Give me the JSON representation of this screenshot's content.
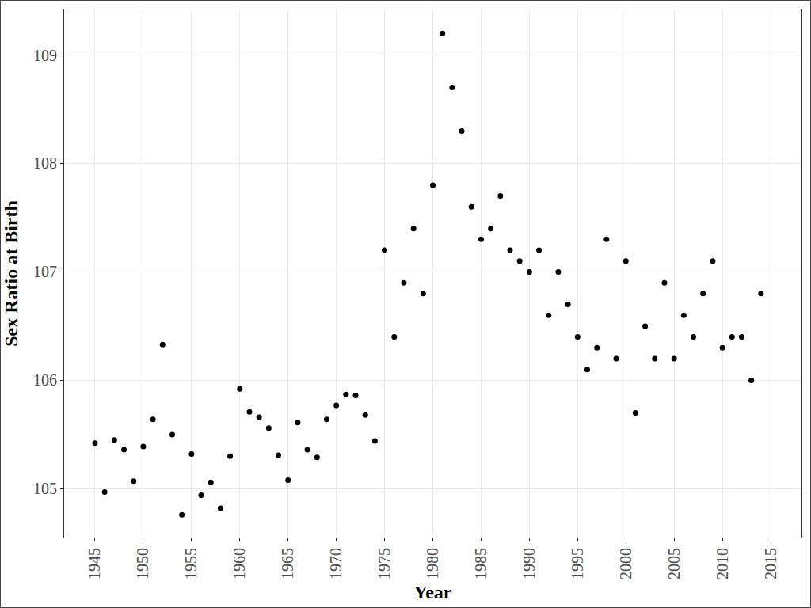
{
  "chart_data": {
    "type": "scatter",
    "x_label": "Year",
    "y_label": "Sex Ratio at Birth",
    "x": [
      1945,
      1946,
      1947,
      1948,
      1949,
      1950,
      1951,
      1952,
      1953,
      1954,
      1955,
      1956,
      1957,
      1958,
      1959,
      1960,
      1961,
      1962,
      1963,
      1964,
      1965,
      1966,
      1967,
      1968,
      1969,
      1970,
      1971,
      1972,
      1973,
      1974,
      1975,
      1976,
      1977,
      1978,
      1979,
      1980,
      1981,
      1982,
      1983,
      1984,
      1985,
      1986,
      1987,
      1988,
      1989,
      1990,
      1991,
      1992,
      1993,
      1994,
      1995,
      1996,
      1997,
      1998,
      1999,
      2000,
      2001,
      2002,
      2003,
      2004,
      2005,
      2006,
      2007,
      2008,
      2009,
      2010,
      2011,
      2012,
      2013,
      2014
    ],
    "values": [
      105.42,
      104.97,
      105.45,
      105.36,
      105.07,
      105.39,
      105.64,
      106.33,
      105.5,
      104.76,
      105.32,
      104.94,
      105.06,
      104.82,
      105.3,
      105.92,
      105.71,
      105.66,
      105.56,
      105.31,
      105.08,
      105.61,
      105.36,
      105.29,
      105.64,
      105.77,
      105.87,
      105.86,
      105.68,
      105.44,
      107.2,
      106.4,
      106.9,
      107.4,
      106.8,
      107.8,
      109.2,
      108.7,
      108.3,
      107.6,
      107.3,
      107.4,
      107.7,
      107.2,
      107.1,
      107.0,
      107.2,
      106.6,
      107.0,
      106.7,
      106.4,
      106.1,
      106.3,
      107.3,
      106.2,
      107.1,
      105.7,
      106.5,
      106.2,
      106.9,
      106.2,
      106.6,
      106.4,
      106.8,
      107.1,
      106.3,
      106.4,
      106.4,
      106.0,
      106.8
    ],
    "color": "#000000",
    "marker": "circle",
    "xlim": [
      1941.8,
      2018.2
    ],
    "xticks": [
      1945,
      1950,
      1955,
      1960,
      1965,
      1970,
      1975,
      1980,
      1985,
      1990,
      1995,
      2000,
      2005,
      2010,
      2015
    ],
    "ylim": [
      104.55,
      109.42
    ],
    "yticks": [
      105,
      106,
      107,
      108,
      109
    ],
    "grid": true
  }
}
